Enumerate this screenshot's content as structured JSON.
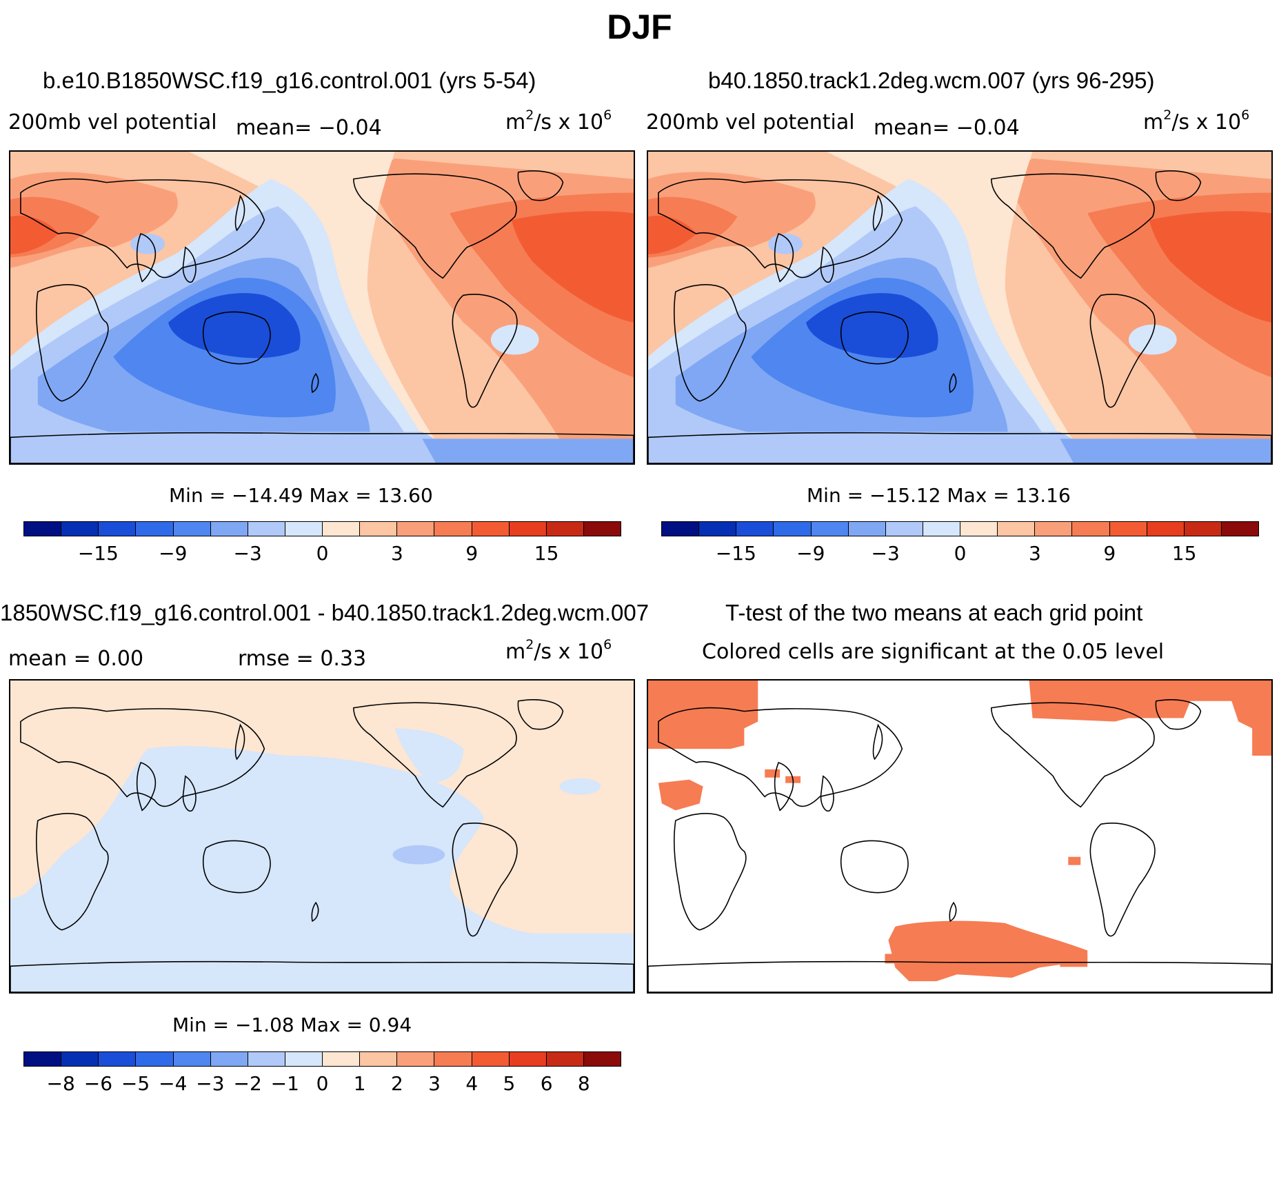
{
  "title": "DJF",
  "colors": {
    "scale": [
      "#000f82",
      "#0530b4",
      "#1a4ed8",
      "#2f6ae8",
      "#4f86f0",
      "#7fa7f4",
      "#b0c9f8",
      "#d6e6fb",
      "#fde6d2",
      "#fcc5a4",
      "#f9a07a",
      "#f67c53",
      "#f35c33",
      "#e63e1f",
      "#c72b16",
      "#8b0a0a"
    ],
    "neg_strong": "#1a4ed8",
    "neg_mid": "#4f86f0",
    "neg_light": "#7fa7f4",
    "neg_pale": "#b0c9f8",
    "neg_faint": "#d6e6fb",
    "pos_faint": "#fde6d2",
    "pos_light": "#fcc5a4",
    "pos_mid": "#f9a07a",
    "pos_strong": "#f67c53",
    "pos_deep": "#f35c33",
    "signif": "#f67c53"
  },
  "panels": {
    "p1": {
      "title": "b.e10.B1850WSC.f19_g16.control.001 (yrs 5-54)",
      "variable": "200mb vel potential",
      "mean": "mean=   −0.04",
      "units_base": "m",
      "units_exp1": "2",
      "units_mid": "/s x 10",
      "units_exp2": "6",
      "minmax": "Min = −14.49 Max =   13.60"
    },
    "p2": {
      "title": "b40.1850.track1.2deg.wcm.007 (yrs 96-295)",
      "variable": "200mb vel potential",
      "mean": "mean=   −0.04",
      "units_base": "m",
      "units_exp1": "2",
      "units_mid": "/s x 10",
      "units_exp2": "6",
      "minmax": "Min = −15.12 Max =   13.16"
    },
    "p3": {
      "title": "1850WSC.f19_g16.control.001 - b40.1850.track1.2deg.wcm.007",
      "mean": "mean =    0.00",
      "rmse": "rmse =    0.33",
      "units_base": "m",
      "units_exp1": "2",
      "units_mid": "/s x 10",
      "units_exp2": "6",
      "minmax": "Min =  −1.08 Max =    0.94"
    },
    "p4": {
      "title": "T-test of the two means at each grid point",
      "subtitle": "Colored cells are significant at the 0.05 level"
    }
  },
  "colorbar_top_ticks": [
    "−15",
    "−9",
    "−3",
    "0",
    "3",
    "9",
    "15"
  ],
  "colorbar_diff_ticks": [
    "−8",
    "−6",
    "−5",
    "−4",
    "−3",
    "−2",
    "−1",
    "0",
    "1",
    "2",
    "3",
    "4",
    "5",
    "6",
    "8"
  ]
}
